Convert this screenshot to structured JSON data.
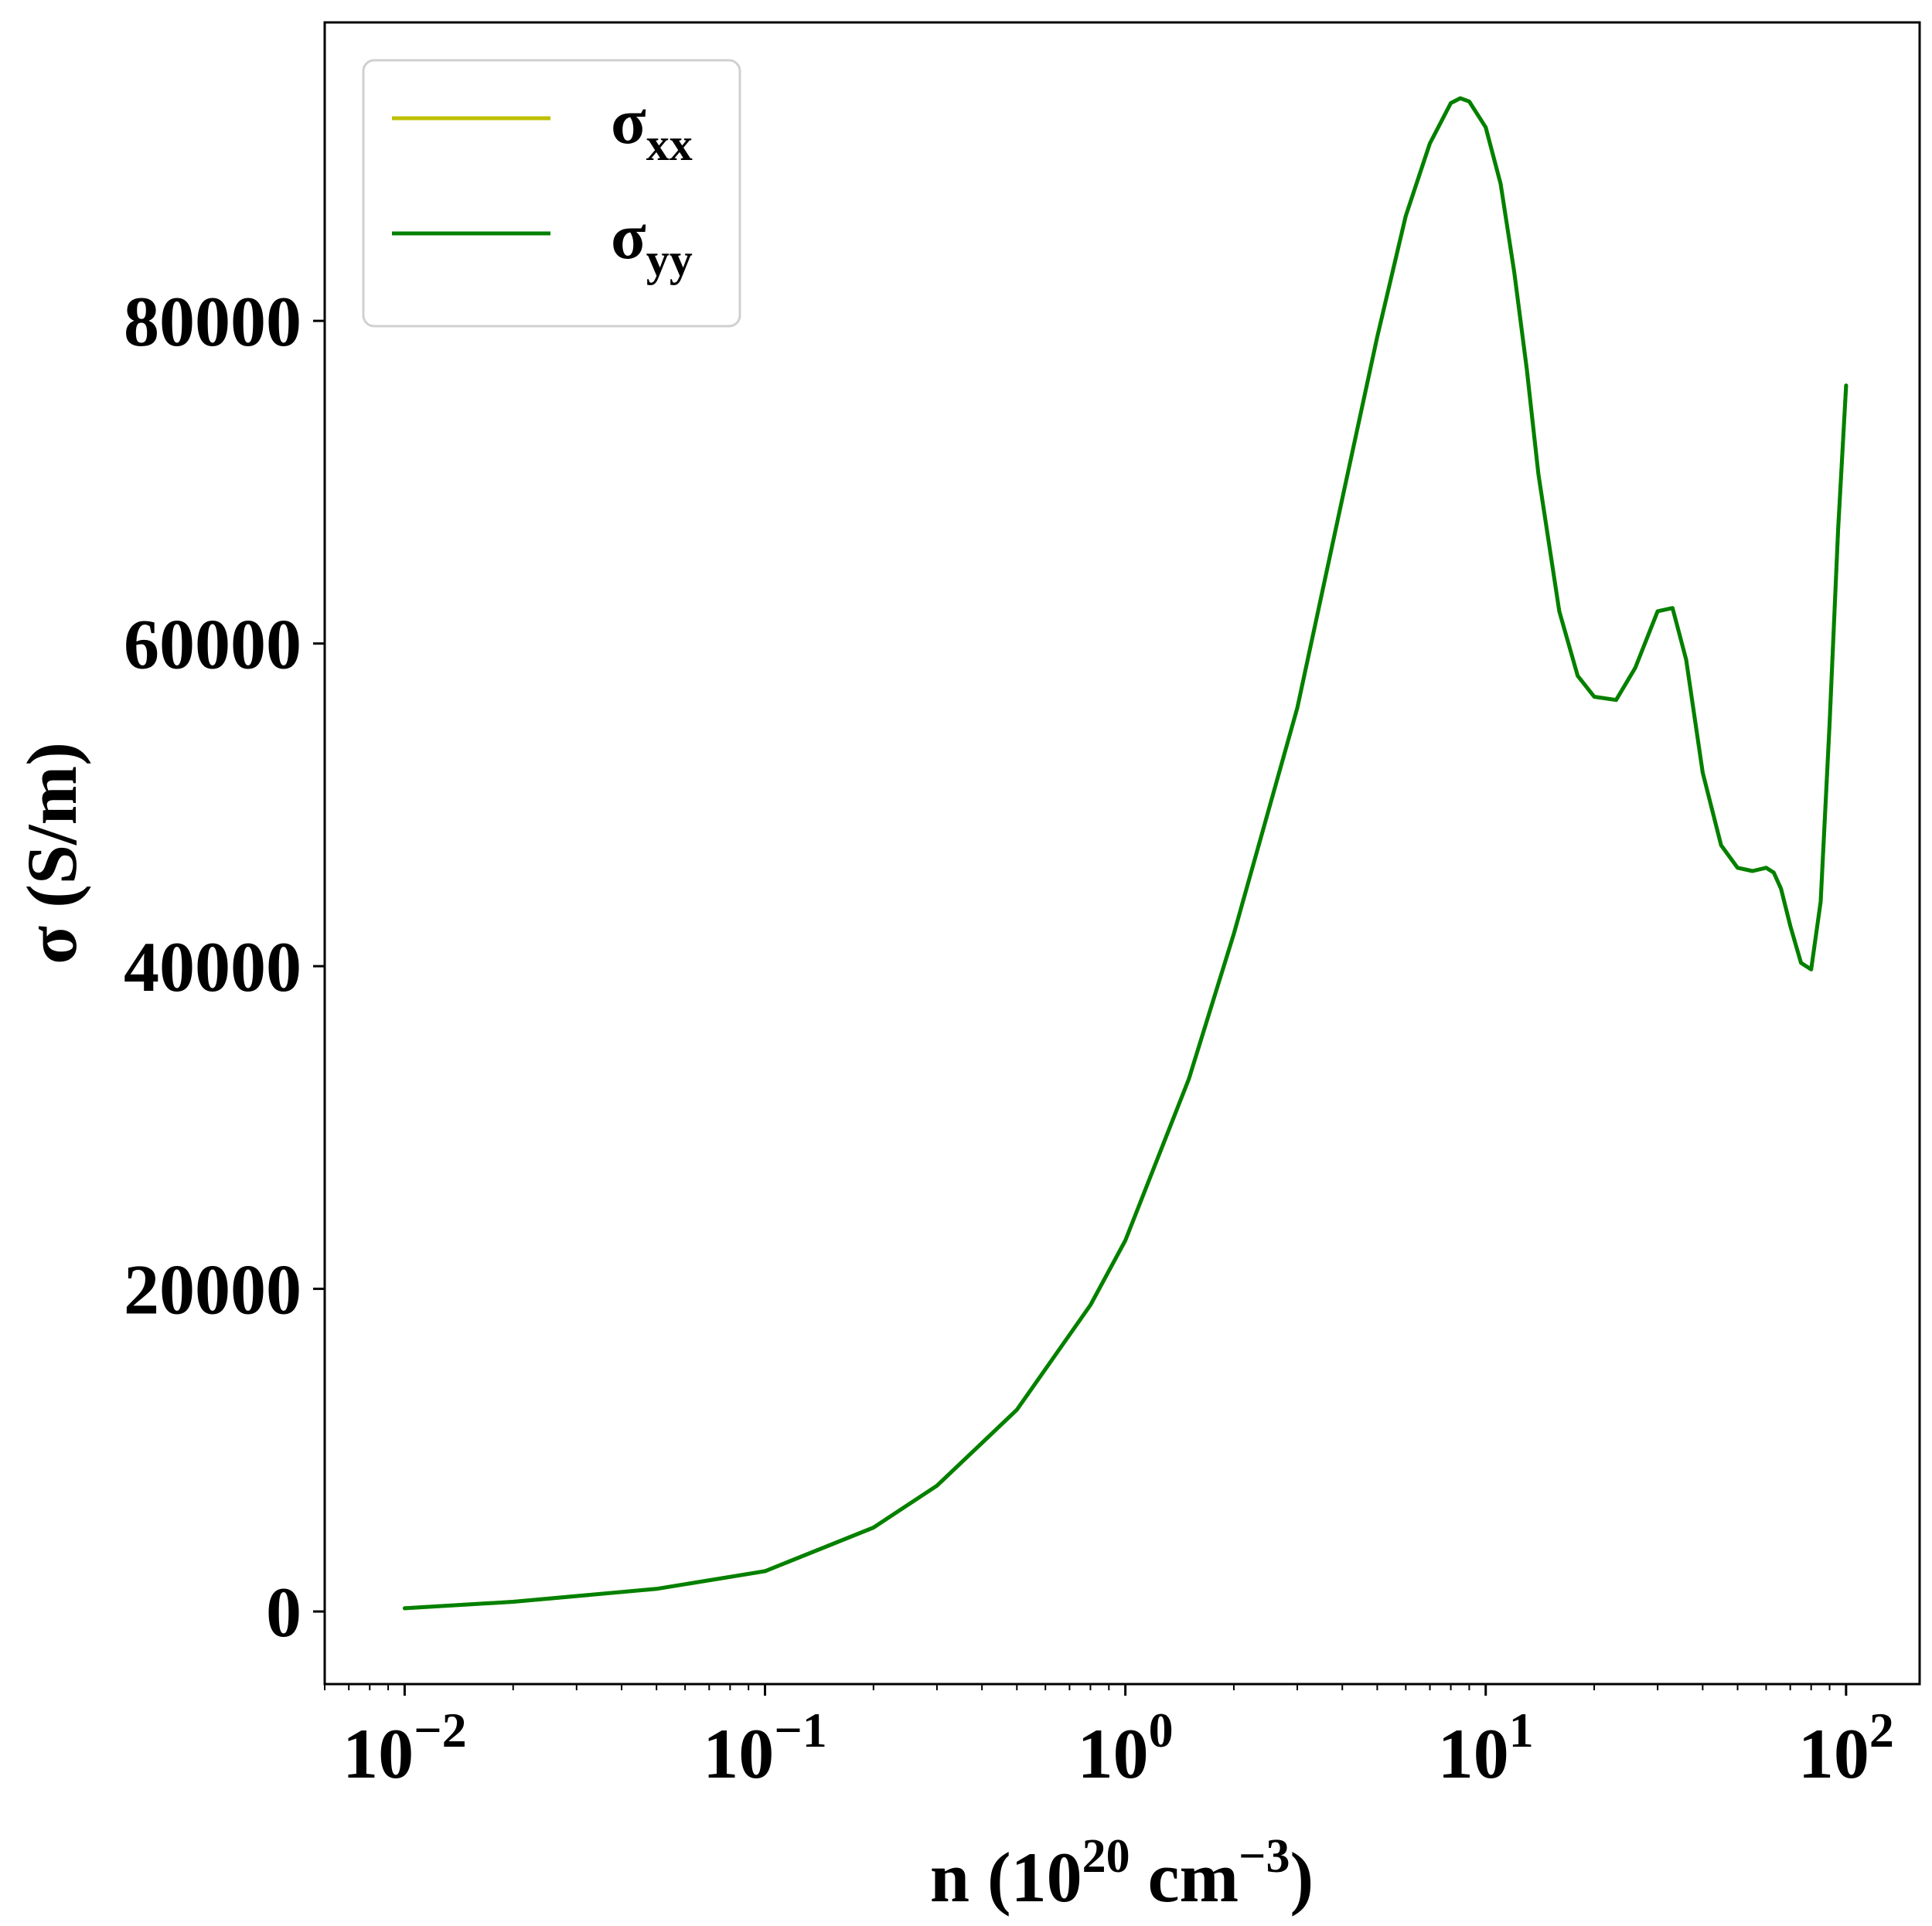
{
  "chart_data": {
    "type": "line",
    "xscale": "log",
    "xlim": [
      0.006,
      160
    ],
    "ylim": [
      -4500,
      98500
    ],
    "grid": false,
    "legend_position": "top-left",
    "xlabel": {
      "base": "n (10",
      "sup1": "20",
      "mid": " cm",
      "sup2": "−3",
      "end": ")"
    },
    "ylabel": "σ (S/m)",
    "x_ticks": [
      {
        "value": 0.01,
        "base": "10",
        "exp": "−2"
      },
      {
        "value": 0.1,
        "base": "10",
        "exp": "−1"
      },
      {
        "value": 1,
        "base": "10",
        "exp": "0"
      },
      {
        "value": 10,
        "base": "10",
        "exp": "1"
      },
      {
        "value": 100,
        "base": "10",
        "exp": "2"
      }
    ],
    "y_ticks": [
      {
        "value": 0,
        "label": "0"
      },
      {
        "value": 20000,
        "label": "20000"
      },
      {
        "value": 40000,
        "label": "40000"
      },
      {
        "value": 60000,
        "label": "60000"
      },
      {
        "value": 80000,
        "label": "80000"
      }
    ],
    "series": [
      {
        "name": "σxx",
        "label_main": "σ",
        "label_sub": "xx",
        "color": "#bfbf00",
        "x": [
          0.01,
          0.02,
          0.05,
          0.1,
          0.2,
          0.3,
          0.5,
          0.8,
          1.0,
          1.5,
          2.0,
          3.0,
          4.0,
          5.0,
          6.0,
          7.0,
          8.0,
          8.5,
          9.0,
          10.0,
          11.0,
          12.0,
          13.0,
          14.0,
          16.0,
          18.0,
          20.0,
          23.0,
          26.0,
          30.0,
          33.0,
          36.0,
          40.0,
          45.0,
          50.0,
          55.0,
          60.0,
          63.0,
          66.0,
          70.0,
          75.0,
          80.0,
          85.0,
          90.0,
          95.0,
          100.0
        ],
        "y": [
          200,
          600,
          1400,
          2500,
          5200,
          7800,
          12500,
          19000,
          23000,
          33000,
          42000,
          56000,
          69000,
          79000,
          86500,
          91000,
          93500,
          93800,
          93600,
          92000,
          88500,
          83000,
          77000,
          70500,
          62000,
          58000,
          56700,
          56500,
          58500,
          62000,
          62200,
          59000,
          52000,
          47500,
          46100,
          45900,
          46100,
          45800,
          44800,
          42500,
          40200,
          39800,
          44000,
          55000,
          67000,
          76000
        ]
      },
      {
        "name": "σyy",
        "label_main": "σ",
        "label_sub": "yy",
        "color": "#008000",
        "x": [
          0.01,
          0.02,
          0.05,
          0.1,
          0.2,
          0.3,
          0.5,
          0.8,
          1.0,
          1.5,
          2.0,
          3.0,
          4.0,
          5.0,
          6.0,
          7.0,
          8.0,
          8.5,
          9.0,
          10.0,
          11.0,
          12.0,
          13.0,
          14.0,
          16.0,
          18.0,
          20.0,
          23.0,
          26.0,
          30.0,
          33.0,
          36.0,
          40.0,
          45.0,
          50.0,
          55.0,
          60.0,
          63.0,
          66.0,
          70.0,
          75.0,
          80.0,
          85.0,
          90.0,
          95.0,
          100.0
        ],
        "y": [
          200,
          600,
          1400,
          2500,
          5200,
          7800,
          12500,
          19000,
          23000,
          33000,
          42000,
          56000,
          69000,
          79000,
          86500,
          91000,
          93500,
          93800,
          93600,
          92000,
          88500,
          83000,
          77000,
          70500,
          62000,
          58000,
          56700,
          56500,
          58500,
          62000,
          62200,
          59000,
          52000,
          47500,
          46100,
          45900,
          46100,
          45800,
          44800,
          42500,
          40200,
          39800,
          44000,
          55000,
          67000,
          76000
        ]
      }
    ]
  }
}
